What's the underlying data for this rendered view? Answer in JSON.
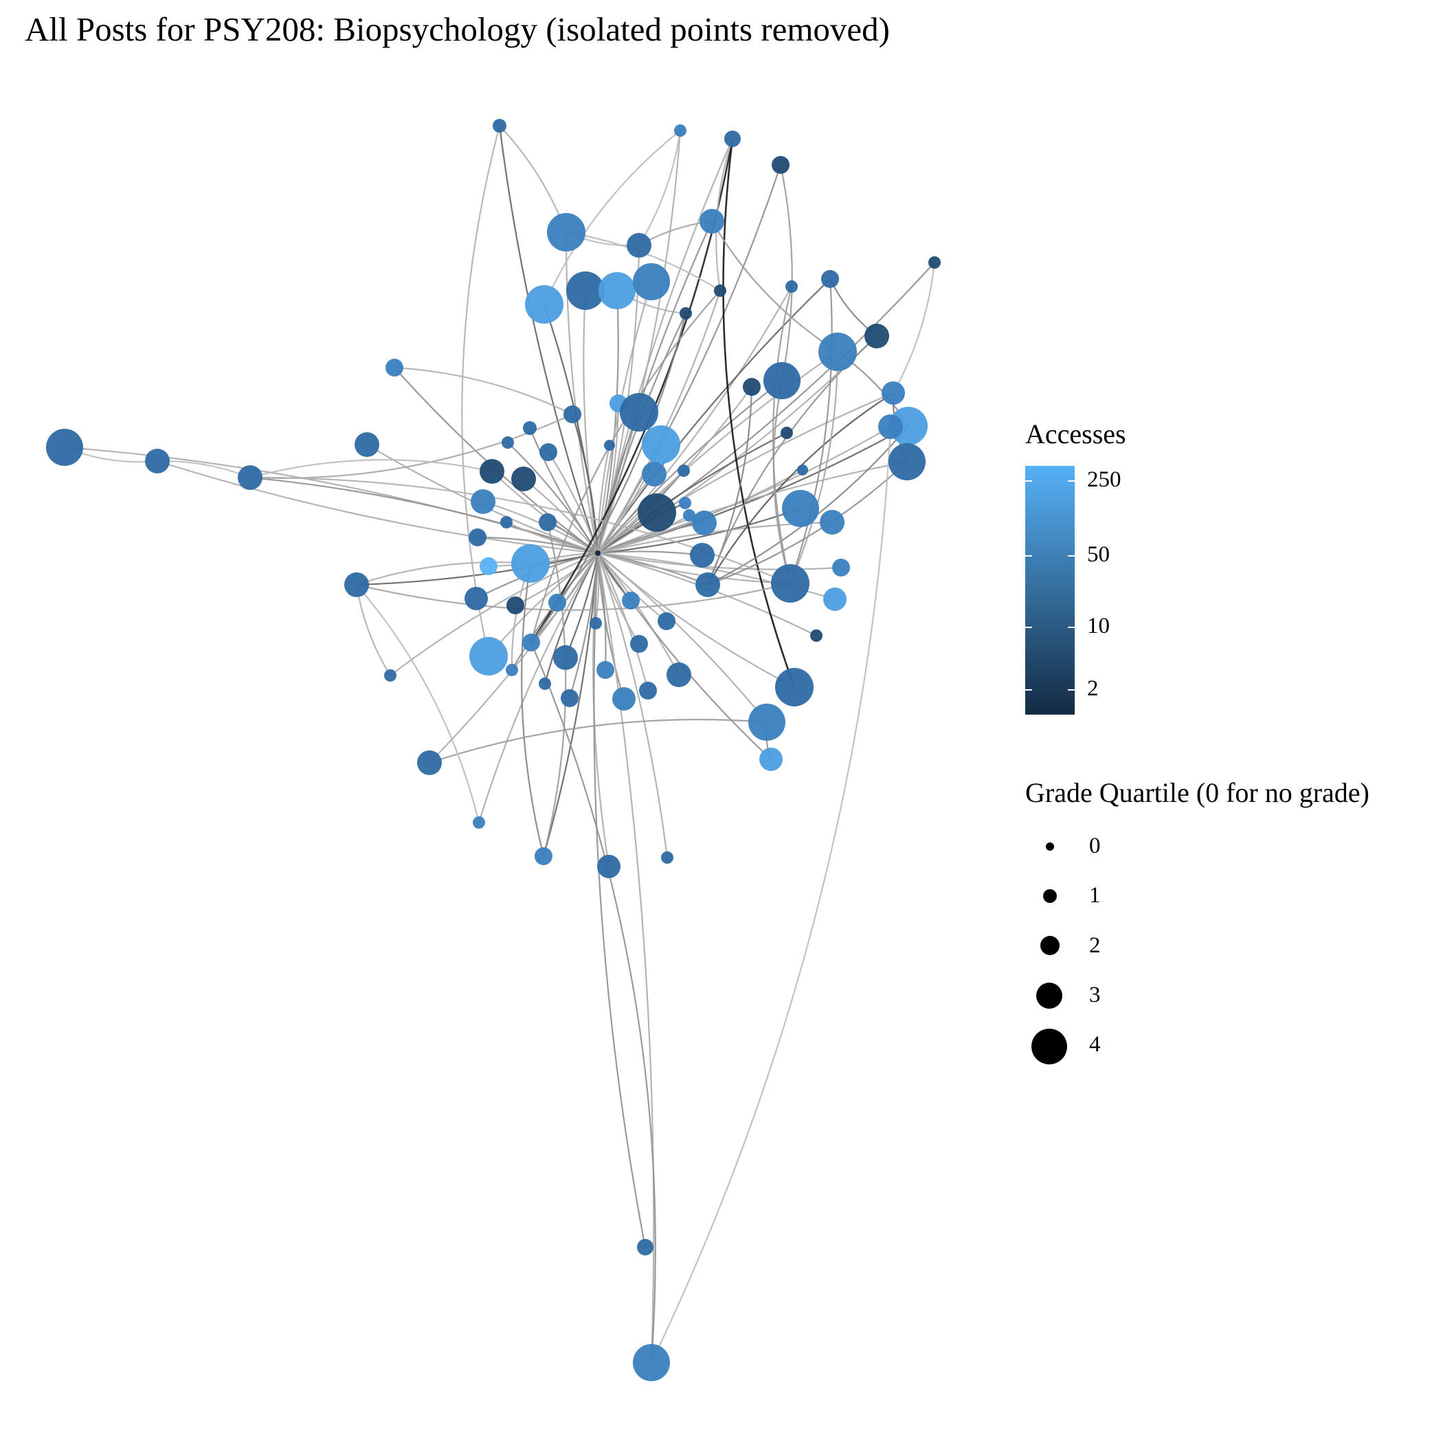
{
  "title": "All Posts for PSY208: Biopsychology (isolated points removed)",
  "legend_color": {
    "title": "Accesses",
    "low_color": "#132B43",
    "high_color": "#56B1F7",
    "ticks": [
      "250",
      "50",
      "10",
      "2"
    ]
  },
  "legend_size": {
    "title": "Grade Quartile (0 for no grade)",
    "levels": [
      "0",
      "1",
      "2",
      "3",
      "4"
    ]
  },
  "edge_color": "#000000",
  "network": {
    "hub": "center",
    "layout": "force-directed",
    "node_count_approx": 110,
    "note_colors": "node fill encodes Accesses (log scale), node size encodes Grade Quartile"
  }
}
